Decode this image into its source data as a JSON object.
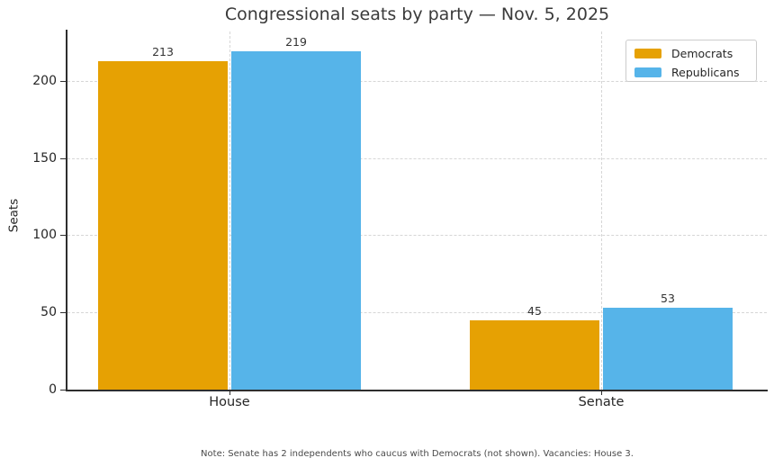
{
  "chart_data": {
    "type": "bar",
    "title": "Congressional seats by party — Nov. 5, 2025",
    "categories": [
      "House",
      "Senate"
    ],
    "series": [
      {
        "name": "Democrats",
        "color": "#E6A103",
        "values": [
          213,
          45
        ]
      },
      {
        "name": "Republicans",
        "color": "#56B4E9",
        "values": [
          219,
          53
        ]
      }
    ],
    "xlabel": "",
    "ylabel": "Seats",
    "ylim": [
      0,
      232
    ],
    "yticks": [
      0,
      50,
      100,
      150,
      200
    ],
    "bar_value_labels": [
      "213",
      "219",
      "45",
      "53"
    ],
    "grid": "both-dashed",
    "legend_position": "upper-right",
    "note": "Note: Senate has 2 independents who caucus with Democrats (not shown). Vacancies: House 3."
  }
}
